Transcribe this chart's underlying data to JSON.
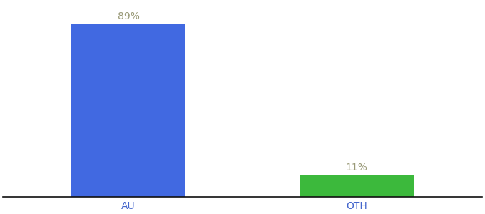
{
  "categories": [
    "AU",
    "OTH"
  ],
  "values": [
    89,
    11
  ],
  "bar_colors": [
    "#4169e1",
    "#3cb93c"
  ],
  "labels": [
    "89%",
    "11%"
  ],
  "background_color": "#ffffff",
  "bar_width": 0.5,
  "ylim": [
    0,
    100
  ],
  "label_fontsize": 10,
  "tick_fontsize": 10,
  "label_color": "#999977",
  "tick_color": "#4466cc"
}
